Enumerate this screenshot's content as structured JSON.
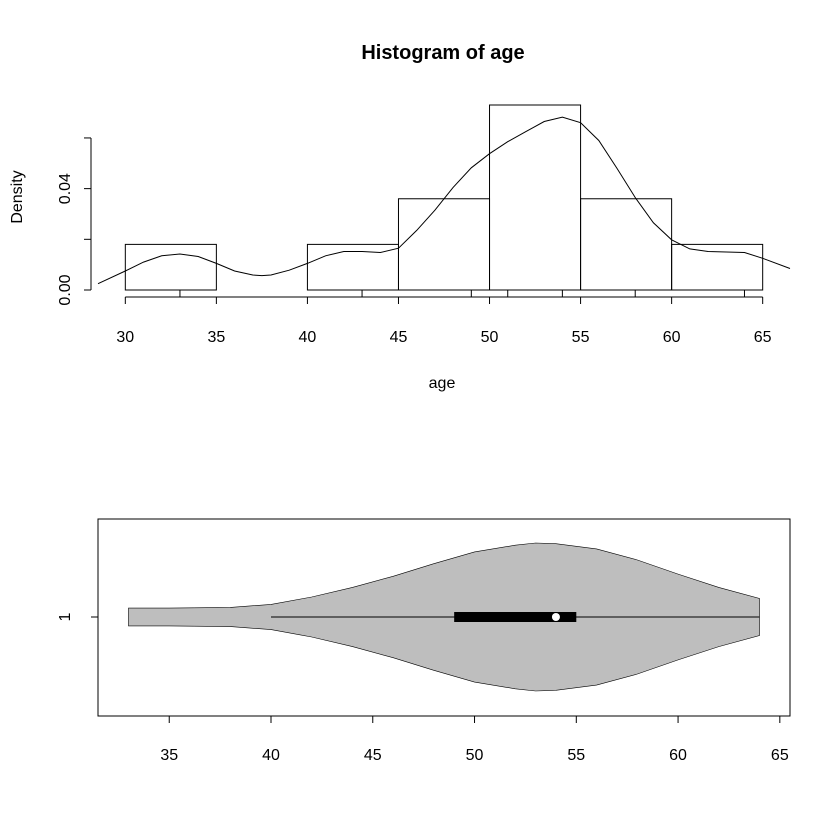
{
  "chart_data": [
    {
      "type": "bar",
      "subtype": "histogram-with-density",
      "title": "Histogram of age",
      "xlabel": "age",
      "ylabel": "Density",
      "x_ticks": [
        30,
        35,
        40,
        45,
        50,
        55,
        60,
        65
      ],
      "y_ticks": [
        0.0,
        0.02,
        0.04,
        0.06
      ],
      "y_tick_labels": [
        "0.00",
        "",
        "0.04",
        ""
      ],
      "bins": [
        {
          "from": 30,
          "to": 35,
          "density": 0.018
        },
        {
          "from": 35,
          "to": 40,
          "density": 0.0
        },
        {
          "from": 40,
          "to": 45,
          "density": 0.018
        },
        {
          "from": 45,
          "to": 50,
          "density": 0.036
        },
        {
          "from": 50,
          "to": 55,
          "density": 0.073
        },
        {
          "from": 55,
          "to": 60,
          "density": 0.036
        },
        {
          "from": 60,
          "to": 65,
          "density": 0.018
        }
      ],
      "rug": [
        33,
        43,
        49,
        51,
        54,
        58,
        64
      ],
      "density_curve": {
        "x": [
          28.5,
          30,
          31,
          32,
          33,
          34,
          35,
          36,
          37,
          37.5,
          38,
          39,
          40,
          41,
          42,
          43,
          44,
          45,
          46,
          47,
          48,
          49,
          50,
          51,
          52,
          53,
          54,
          55,
          56,
          57,
          58,
          59,
          60,
          61,
          62,
          63,
          64,
          65,
          66.5
        ],
        "y": [
          0.0025,
          0.0075,
          0.011,
          0.0135,
          0.0142,
          0.0132,
          0.0105,
          0.0075,
          0.0059,
          0.0057,
          0.0059,
          0.0078,
          0.0105,
          0.0135,
          0.0152,
          0.0152,
          0.0148,
          0.0165,
          0.0235,
          0.0315,
          0.0405,
          0.0482,
          0.0538,
          0.0585,
          0.0625,
          0.0665,
          0.0682,
          0.066,
          0.059,
          0.048,
          0.0365,
          0.0265,
          0.0198,
          0.0162,
          0.0152,
          0.015,
          0.0148,
          0.0125,
          0.0085
        ]
      },
      "xlim": [
        28.5,
        66.5
      ],
      "ylim": [
        0,
        0.073
      ]
    },
    {
      "type": "violin",
      "category": "1",
      "x_ticks": [
        35,
        40,
        45,
        50,
        55,
        60,
        65
      ],
      "xlim": [
        31.5,
        65.5
      ],
      "whisker": [
        40,
        64
      ],
      "box": [
        49,
        55
      ],
      "median": 54,
      "violin": {
        "x": [
          33,
          35,
          38,
          40,
          42,
          44,
          46,
          48,
          50,
          52,
          53,
          54,
          56,
          58,
          60,
          62,
          64
        ],
        "half_width": [
          0.12,
          0.12,
          0.13,
          0.17,
          0.27,
          0.4,
          0.55,
          0.72,
          0.88,
          0.97,
          1.0,
          0.99,
          0.92,
          0.77,
          0.58,
          0.4,
          0.25
        ]
      }
    }
  ]
}
